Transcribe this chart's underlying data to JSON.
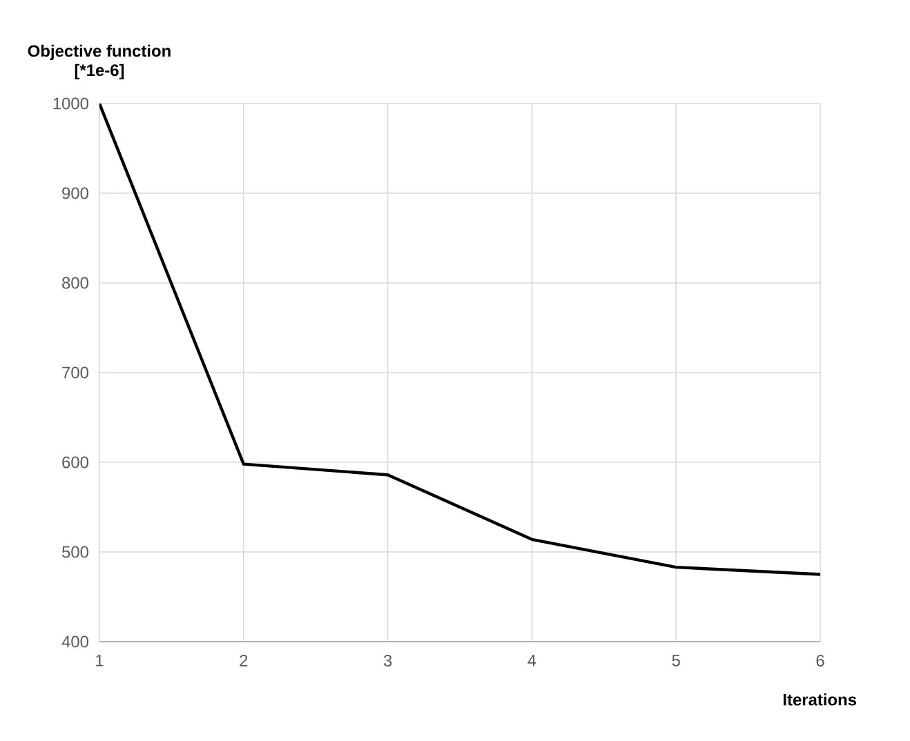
{
  "chart_data": {
    "type": "line",
    "xlabel": "Iterations",
    "ylabel": "Objective function [*1e-6]",
    "x": [
      1,
      2,
      3,
      4,
      5,
      6
    ],
    "series": [
      {
        "color": "#000000",
        "values": [
          1000,
          598,
          586,
          514,
          483,
          475
        ]
      }
    ],
    "xlim": [
      1,
      6
    ],
    "xticks": [
      1,
      2,
      3,
      4,
      5,
      6
    ],
    "ylim": [
      400,
      1000
    ],
    "yticks": [
      400,
      500,
      600,
      700,
      800,
      900,
      1000
    ],
    "grid": true,
    "marker": "none",
    "line_style": "solid"
  }
}
